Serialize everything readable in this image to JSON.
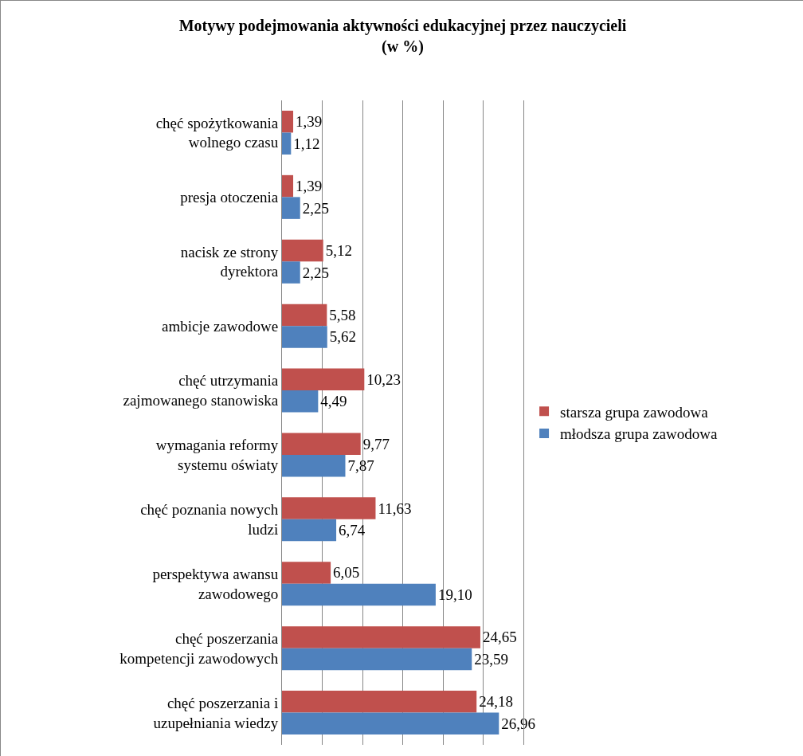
{
  "chart_data": {
    "type": "bar",
    "orientation": "horizontal",
    "title": "Motywy podejmowania aktywności edukacyjnej przez nauczycieli\n(w %)",
    "categories": [
      "chęć spożytkowania wolnego czasu",
      "presja otoczenia",
      "nacisk ze strony dyrektora",
      "ambicje zawodowe",
      "chęć utrzymania zajmowanego stanowiska",
      "wymagania reformy systemu oświaty",
      "chęć poznania nowych ludzi",
      "perspektywa awansu zawodowego",
      "chęć poszerzania kompetencji zawodowych",
      "chęć poszerzania i uzupełniania wiedzy"
    ],
    "series": [
      {
        "name": "starsza grupa zawodowa",
        "color": "#c0504d",
        "values": [
          1.39,
          1.39,
          5.12,
          5.58,
          10.23,
          9.77,
          11.63,
          6.05,
          24.65,
          24.18
        ],
        "value_labels": [
          "1,39",
          "1,39",
          "5,12",
          "5,58",
          "10,23",
          "9,77",
          "11,63",
          "6,05",
          "24,65",
          "24,18"
        ]
      },
      {
        "name": "młodsza grupa zawodowa",
        "color": "#4f81bd",
        "values": [
          1.12,
          2.25,
          2.25,
          5.62,
          4.49,
          7.87,
          6.74,
          19.1,
          23.59,
          26.96
        ],
        "value_labels": [
          "1,12",
          "2,25",
          "2,25",
          "5,62",
          "4,49",
          "7,87",
          "6,74",
          "19,10",
          "23,59",
          "26,96"
        ]
      }
    ],
    "xlim": [
      0,
      30
    ],
    "xticks": [
      {
        "value": 5,
        "label": null
      },
      {
        "value": 10,
        "label": null
      },
      {
        "value": 15,
        "label": null
      },
      {
        "value": 20,
        "label": null
      },
      {
        "value": 25,
        "label": null
      }
    ],
    "tick_labels": "y",
    "grid": "x",
    "legend": "right"
  }
}
